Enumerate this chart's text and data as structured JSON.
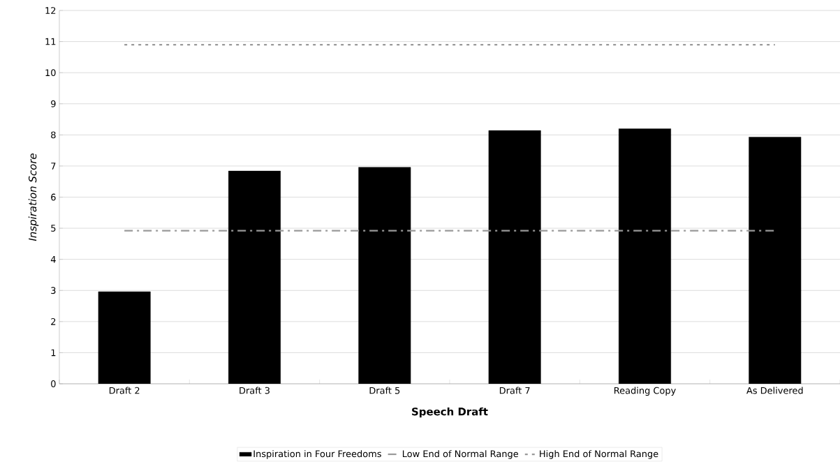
{
  "chart_data": {
    "type": "bar",
    "xlabel": "Speech Draft",
    "ylabel": "Inspiration Score",
    "categories": [
      "Draft 2",
      "Draft 3",
      "Draft 5",
      "Draft 7",
      "Reading Copy",
      "As Delivered"
    ],
    "series": [
      {
        "name": "Inspiration in Four Freedoms",
        "color": "#000000",
        "values": [
          2.96,
          6.84,
          6.96,
          8.14,
          8.2,
          7.93
        ]
      },
      {
        "name": "Low End of Normal Range",
        "type": "line",
        "line_style": "dashed",
        "color": "#999999",
        "values": [
          4.92,
          4.92,
          4.92,
          4.92,
          4.92,
          4.92
        ]
      },
      {
        "name": "High End of Normal Range",
        "type": "line",
        "line_style": "dotted",
        "color": "#999999",
        "values": [
          10.9,
          10.9,
          10.9,
          10.9,
          10.9,
          10.9
        ]
      }
    ],
    "ylim": [
      0,
      12
    ],
    "yticks": [
      0,
      1,
      2,
      3,
      4,
      5,
      6,
      7,
      8,
      9,
      10,
      11,
      12
    ],
    "grid": "y",
    "legend": "bottom",
    "marker": "none"
  }
}
